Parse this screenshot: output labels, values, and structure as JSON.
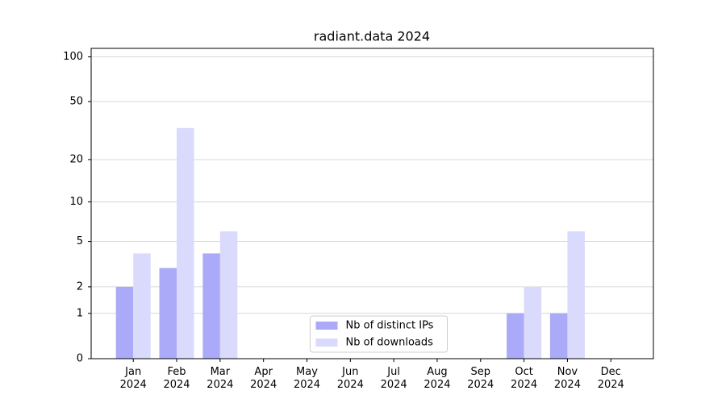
{
  "chart_data": {
    "type": "bar",
    "title": "radiant.data 2024",
    "categories": [
      "Jan 2024",
      "Feb 2024",
      "Mar 2024",
      "Apr 2024",
      "May 2024",
      "Jun 2024",
      "Jul 2024",
      "Aug 2024",
      "Sep 2024",
      "Oct 2024",
      "Nov 2024",
      "Dec 2024"
    ],
    "series": [
      {
        "name": "Nb of distinct IPs",
        "color": "#aaaaf8",
        "values": [
          2,
          3,
          4,
          0,
          0,
          0,
          0,
          0,
          0,
          1,
          1,
          0
        ]
      },
      {
        "name": "Nb of downloads",
        "color": "#dadafc",
        "values": [
          4,
          33,
          6,
          0,
          0,
          0,
          0,
          0,
          0,
          2,
          6,
          0
        ]
      }
    ],
    "yscale": "log1p",
    "ylim": [
      0,
      114
    ],
    "yticks": [
      0,
      1,
      2,
      5,
      10,
      20,
      50,
      100
    ],
    "grid": true,
    "legend": "lower center"
  }
}
